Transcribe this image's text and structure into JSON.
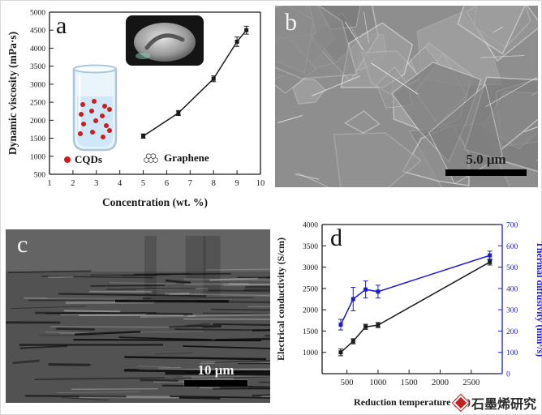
{
  "figure": {
    "panels": {
      "a": {
        "label": "a",
        "legend": {
          "cqds": "CQDs",
          "graphene": "Graphene"
        }
      },
      "b": {
        "label": "b",
        "scalebar": "5.0 μm"
      },
      "c": {
        "label": "c",
        "scalebar": "10 μm"
      },
      "d": {
        "label": "d"
      }
    },
    "watermark": "石墨烯研究"
  },
  "colors": {
    "accent_red": "#d11a1a",
    "axis_black": "#1a1a1a",
    "thermal_blue": "#1c1ccd"
  },
  "chart_data": [
    {
      "id": "viscosity-vs-concentration",
      "type": "line",
      "title": "",
      "xlabel": "Concentration (wt. %)",
      "ylabel": "Dynamic viscosity (mPa·s)",
      "xlim": [
        1,
        10
      ],
      "ylim": [
        500,
        5000
      ],
      "xticks": [
        1,
        2,
        3,
        4,
        5,
        6,
        7,
        8,
        9,
        10
      ],
      "yticks": [
        500,
        1000,
        1500,
        2000,
        2500,
        3000,
        3500,
        4000,
        4500,
        5000
      ],
      "grid": false,
      "series": [
        {
          "name": "dynamic viscosity",
          "color": "#1a1a1a",
          "x": [
            5.0,
            6.5,
            8.0,
            9.0,
            9.4
          ],
          "y": [
            1560,
            2200,
            3150,
            4180,
            4500
          ],
          "yerr": [
            60,
            70,
            80,
            130,
            110
          ]
        }
      ]
    },
    {
      "id": "conductivity-diffusivity-vs-temperature",
      "type": "line",
      "title": "",
      "xlabel": "Reduction temperature (°C)",
      "ylabel_left": "Electrical conductivity (S/cm)",
      "ylabel_right": "Thermal diffusivity (mm²/s)",
      "xlim": [
        100,
        3000
      ],
      "ylim_left": [
        500,
        4000
      ],
      "ylim_right": [
        0,
        700
      ],
      "xticks": [
        500,
        1000,
        1500,
        2000,
        2500
      ],
      "yticks_left": [
        1000,
        1500,
        2000,
        2500,
        3000,
        3500,
        4000
      ],
      "yticks_right": [
        0,
        100,
        200,
        300,
        400,
        500,
        600,
        700
      ],
      "right_color": "#1c1ccd",
      "grid": false,
      "series": [
        {
          "name": "electrical conductivity",
          "axis": "left",
          "color": "#1a1a1a",
          "x": [
            400,
            600,
            800,
            1000,
            2800
          ],
          "y": [
            1000,
            1260,
            1600,
            1640,
            3120
          ],
          "yerr": [
            80,
            60,
            60,
            60,
            70
          ]
        },
        {
          "name": "thermal diffusivity",
          "axis": "right",
          "color": "#1c1ccd",
          "x": [
            400,
            600,
            800,
            1000,
            2800
          ],
          "y": [
            230,
            350,
            395,
            385,
            555
          ],
          "yerr": [
            25,
            55,
            40,
            30,
            20
          ]
        }
      ]
    }
  ]
}
